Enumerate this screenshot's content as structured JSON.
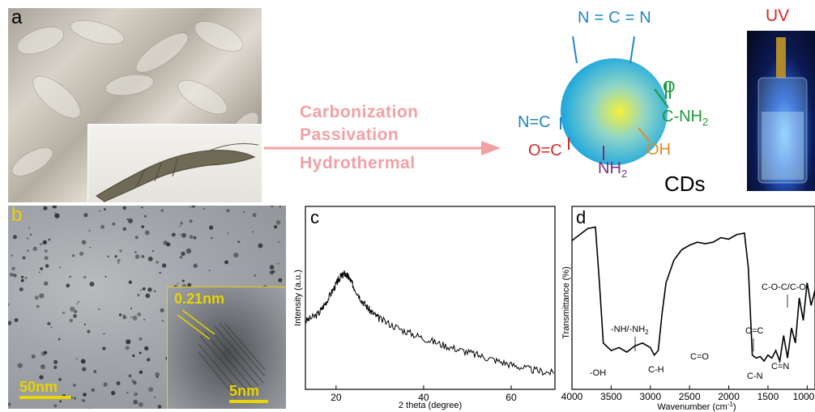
{
  "panel_a": {
    "label": "a",
    "steps": [
      "Carbonization",
      "Passivation",
      "Hydrothermal"
    ],
    "groups": {
      "cnn_top": "N=C=N",
      "n_left": "N=C",
      "o_left": "O=C",
      "nh2_bottom": "NH",
      "nh2_sub": "2",
      "oh": "OH",
      "conh2_o": "O",
      "conh2": "C-NH",
      "conh2_sub": "2"
    },
    "cds_label": "CDs",
    "uv_label": "UV",
    "colors": {
      "steps": "#f1a1a4",
      "blue": "#1f86c8",
      "green": "#1a9a3a",
      "red": "#d42a2a",
      "purple": "#7b2f7f",
      "orange": "#e58a1f"
    }
  },
  "panel_b": {
    "label": "b",
    "scale_main": "50nm",
    "scale_inset": "5nm",
    "lattice": "0.21nm",
    "accent": "#e8d400"
  },
  "panel_c": {
    "label": "c",
    "ylabel": "Intensity (a.u.)",
    "xlabel": "2 theta (degree)",
    "xticks": [
      "20",
      "40",
      "60"
    ]
  },
  "panel_d": {
    "label": "d",
    "ylabel": "Transmittance (%)",
    "xlabel": "Wavenumber (cm",
    "xlabel_sup": "-1",
    "xlabel_end": ")",
    "xticks": [
      "4000",
      "3500",
      "3000",
      "2500",
      "2000",
      "1500",
      "1000"
    ],
    "annotations": {
      "oh": "-OH",
      "nh": "-NH/-NH",
      "nh_sub": "2",
      "ch": "C-H",
      "co": "C=O",
      "cc": "C=C",
      "cn": "C-N",
      "cn2": "C=N",
      "coc": "C-O-C/C-O"
    }
  },
  "chart_data": [
    {
      "type": "line",
      "title": "",
      "xlabel": "2 theta (degree)",
      "ylabel": "Intensity (a.u.)",
      "xlim": [
        13,
        70
      ],
      "x": [
        13,
        16,
        18,
        20,
        21,
        22,
        23,
        24,
        26,
        28,
        30,
        35,
        40,
        45,
        50,
        55,
        60,
        65,
        70
      ],
      "values": [
        0.55,
        0.62,
        0.75,
        0.9,
        0.97,
        1.0,
        0.96,
        0.88,
        0.74,
        0.64,
        0.57,
        0.47,
        0.39,
        0.32,
        0.26,
        0.2,
        0.14,
        0.09,
        0.06
      ]
    },
    {
      "type": "line",
      "title": "",
      "xlabel": "Wavenumber (cm-1)",
      "ylabel": "Transmittance (%)",
      "xlim": [
        4000,
        900
      ],
      "x": [
        4000,
        3900,
        3800,
        3700,
        3650,
        3600,
        3500,
        3400,
        3300,
        3200,
        3100,
        3000,
        2950,
        2900,
        2850,
        2800,
        2700,
        2600,
        2500,
        2400,
        2300,
        2200,
        2100,
        2000,
        1900,
        1800,
        1750,
        1700,
        1650,
        1600,
        1550,
        1500,
        1450,
        1400,
        1350,
        1300,
        1250,
        1200,
        1150,
        1100,
        1050,
        1000,
        950,
        900
      ],
      "values": [
        0.88,
        0.92,
        0.96,
        0.97,
        0.6,
        0.2,
        0.15,
        0.17,
        0.14,
        0.18,
        0.2,
        0.17,
        0.12,
        0.15,
        0.4,
        0.6,
        0.75,
        0.82,
        0.85,
        0.87,
        0.86,
        0.87,
        0.9,
        0.89,
        0.92,
        0.93,
        0.7,
        0.12,
        0.1,
        0.11,
        0.08,
        0.12,
        0.1,
        0.15,
        0.08,
        0.25,
        0.1,
        0.3,
        0.2,
        0.5,
        0.35,
        0.6,
        0.45,
        0.55
      ]
    }
  ]
}
